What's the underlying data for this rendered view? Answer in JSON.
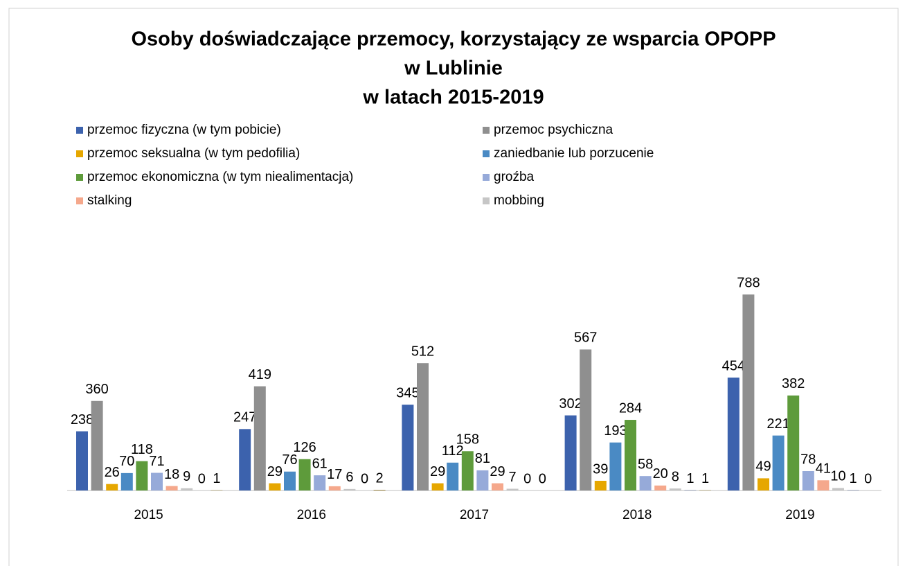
{
  "chart_data": {
    "type": "bar",
    "title": [
      "Osoby doświadczające przemocy, korzystający ze wsparcia OPOPP",
      "w Lublinie",
      "w latach 2015-2019"
    ],
    "categories": [
      "2015",
      "2016",
      "2017",
      "2018",
      "2019"
    ],
    "series": [
      {
        "name": "przemoc fizyczna (w tym pobicie)",
        "color": "#3c62ad",
        "values": [
          238,
          247,
          345,
          302,
          454
        ]
      },
      {
        "name": "przemoc psychiczna",
        "color": "#8f8f8f",
        "values": [
          360,
          419,
          512,
          567,
          788
        ]
      },
      {
        "name": "przemoc seksualna (w tym pedofilia)",
        "color": "#e6a700",
        "values": [
          26,
          29,
          29,
          39,
          49
        ]
      },
      {
        "name": "zaniedbanie lub porzucenie",
        "color": "#4a8ac4",
        "values": [
          70,
          76,
          112,
          193,
          221
        ]
      },
      {
        "name": "przemoc ekonomiczna (w  tym niealimentacja)",
        "color": "#5e9b3b",
        "values": [
          118,
          126,
          158,
          284,
          382
        ]
      },
      {
        "name": "groźba",
        "color": "#96aad9",
        "values": [
          71,
          61,
          81,
          58,
          78
        ]
      },
      {
        "name": "stalking",
        "color": "#f5a88c",
        "values": [
          18,
          17,
          29,
          20,
          41
        ]
      },
      {
        "name": "mobbing",
        "color": "#c6c6c6",
        "values": [
          9,
          6,
          7,
          8,
          10
        ]
      },
      {
        "name": null,
        "color": "#26447a",
        "values": [
          0,
          0,
          0,
          1,
          1
        ]
      },
      {
        "name": null,
        "color": "#7f6000",
        "values": [
          1,
          2,
          0,
          1,
          0
        ]
      }
    ]
  }
}
